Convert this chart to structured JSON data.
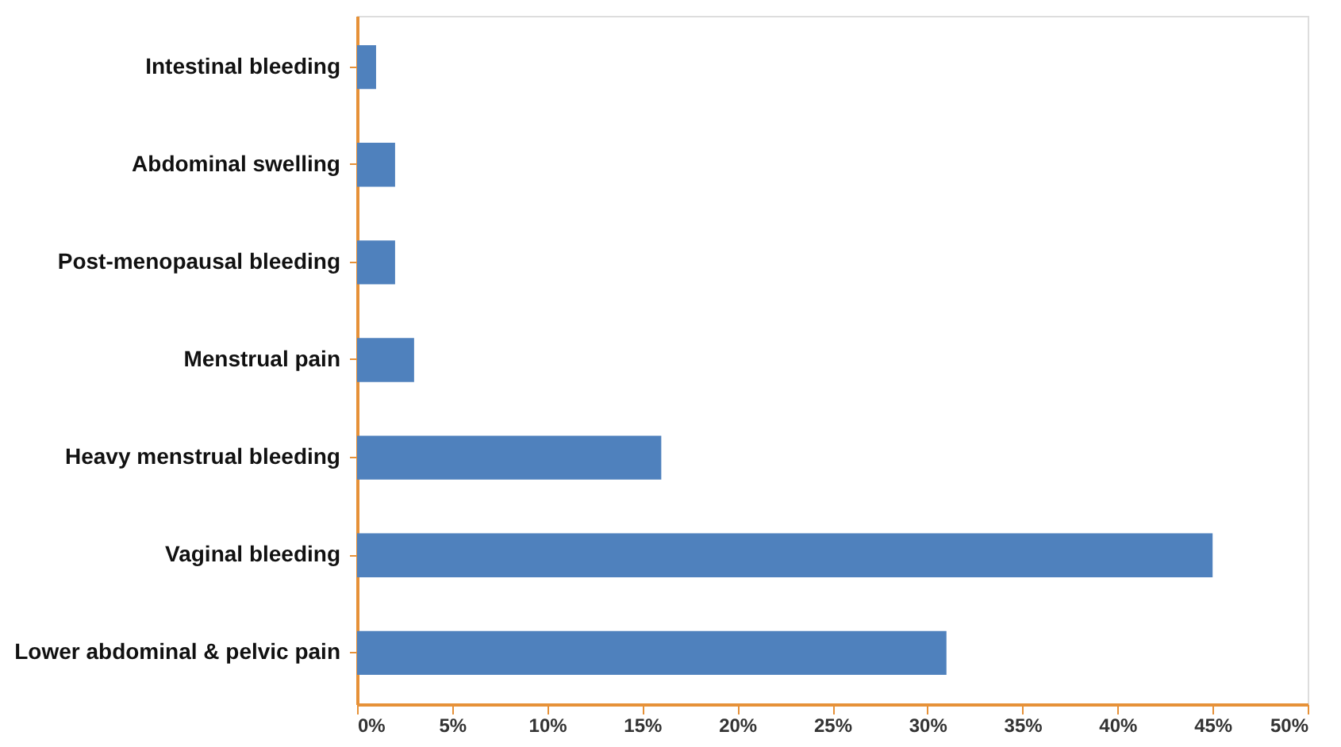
{
  "chart_data": {
    "type": "bar",
    "orientation": "horizontal",
    "categories": [
      "Intestinal bleeding",
      "Abdominal swelling",
      "Post-menopausal bleeding",
      "Menstrual pain",
      "Heavy menstrual bleeding",
      "Vaginal bleeding",
      "Lower abdominal & pelvic pain"
    ],
    "values": [
      1,
      2,
      2,
      3,
      16,
      45,
      31
    ],
    "color": "#4f81bd",
    "xlim": [
      0,
      50
    ],
    "xticks": [
      {
        "value": 0,
        "label": "0%"
      },
      {
        "value": 5,
        "label": "5%"
      },
      {
        "value": 10,
        "label": "10%"
      },
      {
        "value": 15,
        "label": "15%"
      },
      {
        "value": 20,
        "label": "20%"
      },
      {
        "value": 25,
        "label": "25%"
      },
      {
        "value": 30,
        "label": "30%"
      },
      {
        "value": 35,
        "label": "35%"
      },
      {
        "value": 40,
        "label": "40%"
      },
      {
        "value": 45,
        "label": "45%"
      },
      {
        "value": 50,
        "label": "50%"
      }
    ],
    "grid": false
  }
}
